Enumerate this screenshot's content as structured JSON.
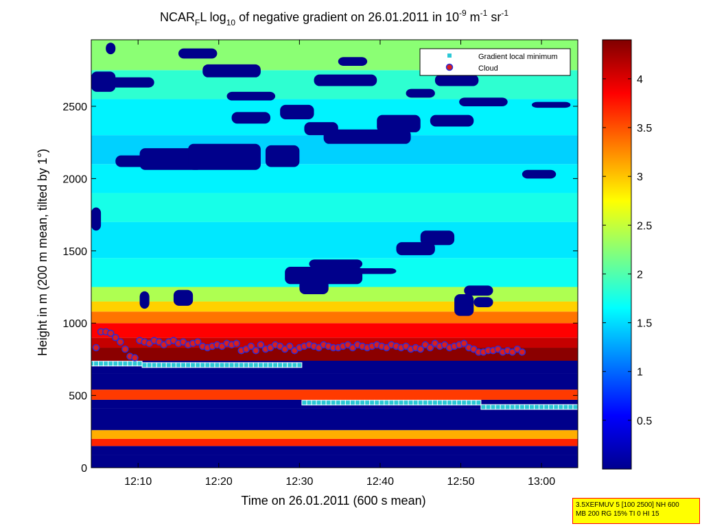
{
  "chart_data": {
    "type": "heatmap",
    "title": {
      "prefix": "NCAR",
      "sub1": "F",
      "mid1": "L log",
      "sub2": "10",
      "mid2": " of negative gradient on 26.01.2011 in 10",
      "sup1": "-9",
      "mid3": " m",
      "sup2": "-1",
      "mid4": " sr",
      "sup3": "-1"
    },
    "xlabel": "Time on 26.01.2011 (600 s mean)",
    "ylabel": "Height in m (200 m mean, tilted by 1°)",
    "xlim": [
      12.07,
      13.075
    ],
    "ylim": [
      0,
      2960
    ],
    "x_ticks": [
      {
        "value": 12.1667,
        "label": "12:10"
      },
      {
        "value": 12.3333,
        "label": "12:20"
      },
      {
        "value": 12.5,
        "label": "12:30"
      },
      {
        "value": 12.6667,
        "label": "12:40"
      },
      {
        "value": 12.8333,
        "label": "12:50"
      },
      {
        "value": 13.0,
        "label": "13:00"
      }
    ],
    "y_ticks": [
      {
        "value": 0,
        "label": "0"
      },
      {
        "value": 500,
        "label": "500"
      },
      {
        "value": 1000,
        "label": "1000"
      },
      {
        "value": 1500,
        "label": "1500"
      },
      {
        "value": 2000,
        "label": "2000"
      },
      {
        "value": 2500,
        "label": "2500"
      }
    ],
    "colorbar": {
      "range": [
        0,
        4.4
      ],
      "colormap": "jet",
      "ticks": [
        {
          "value": 0.5,
          "label": "0.5"
        },
        {
          "value": 1,
          "label": "1"
        },
        {
          "value": 1.5,
          "label": "1.5"
        },
        {
          "value": 2,
          "label": "2"
        },
        {
          "value": 2.5,
          "label": "2.5"
        },
        {
          "value": 3,
          "label": "3"
        },
        {
          "value": 3.5,
          "label": "3.5"
        },
        {
          "value": 4,
          "label": "4"
        }
      ]
    },
    "heatmap_bands": [
      {
        "ymin": 0,
        "ymax": 90,
        "value": 0.05
      },
      {
        "ymin": 90,
        "ymax": 150,
        "value": 0.05
      },
      {
        "ymin": 150,
        "ymax": 200,
        "value": 3.7
      },
      {
        "ymin": 200,
        "ymax": 260,
        "value": 3.1
      },
      {
        "ymin": 260,
        "ymax": 410,
        "value": 0.05
      },
      {
        "ymin": 410,
        "ymax": 470,
        "value": 0.05
      },
      {
        "ymin": 470,
        "ymax": 540,
        "value": 3.6
      },
      {
        "ymin": 540,
        "ymax": 650,
        "value": 0.05
      },
      {
        "ymin": 650,
        "ymax": 740,
        "value": 0.05
      },
      {
        "ymin": 740,
        "ymax": 830,
        "value": 4.35
      },
      {
        "ymin": 830,
        "ymax": 900,
        "value": 4.1
      },
      {
        "ymin": 900,
        "ymax": 1000,
        "value": 3.85
      },
      {
        "ymin": 1000,
        "ymax": 1080,
        "value": 3.35
      },
      {
        "ymin": 1080,
        "ymax": 1150,
        "value": 2.95
      },
      {
        "ymin": 1150,
        "ymax": 1250,
        "value": 2.4
      },
      {
        "ymin": 1250,
        "ymax": 1450,
        "value": 1.7
      },
      {
        "ymin": 1450,
        "ymax": 1700,
        "value": 1.55
      },
      {
        "ymin": 1700,
        "ymax": 1900,
        "value": 1.75
      },
      {
        "ymin": 1900,
        "ymax": 2100,
        "value": 1.6
      },
      {
        "ymin": 2100,
        "ymax": 2300,
        "value": 1.45
      },
      {
        "ymin": 2300,
        "ymax": 2550,
        "value": 1.6
      },
      {
        "ymin": 2550,
        "ymax": 2750,
        "value": 1.85
      },
      {
        "ymin": 2750,
        "ymax": 2960,
        "value": 2.25
      }
    ],
    "low_value_patches": [
      {
        "t0": 12.07,
        "t1": 12.12,
        "h0": 2600,
        "h1": 2740
      },
      {
        "t0": 12.11,
        "t1": 12.2,
        "h0": 2630,
        "h1": 2700
      },
      {
        "t0": 12.12,
        "t1": 12.22,
        "h0": 2080,
        "h1": 2160
      },
      {
        "t0": 12.17,
        "t1": 12.3,
        "h0": 2060,
        "h1": 2210
      },
      {
        "t0": 12.27,
        "t1": 12.42,
        "h0": 2060,
        "h1": 2240
      },
      {
        "t0": 12.43,
        "t1": 12.5,
        "h0": 2080,
        "h1": 2230
      },
      {
        "t0": 12.3,
        "t1": 12.42,
        "h0": 2700,
        "h1": 2790
      },
      {
        "t0": 12.35,
        "t1": 12.45,
        "h0": 2540,
        "h1": 2600
      },
      {
        "t0": 12.36,
        "t1": 12.44,
        "h0": 2380,
        "h1": 2460
      },
      {
        "t0": 12.46,
        "t1": 12.53,
        "h0": 2410,
        "h1": 2510
      },
      {
        "t0": 12.51,
        "t1": 12.58,
        "h0": 2300,
        "h1": 2390
      },
      {
        "t0": 12.53,
        "t1": 12.66,
        "h0": 2640,
        "h1": 2720
      },
      {
        "t0": 12.55,
        "t1": 12.73,
        "h0": 2240,
        "h1": 2340
      },
      {
        "t0": 12.66,
        "t1": 12.75,
        "h0": 2320,
        "h1": 2440
      },
      {
        "t0": 12.72,
        "t1": 12.78,
        "h0": 2560,
        "h1": 2620
      },
      {
        "t0": 12.78,
        "t1": 12.87,
        "h0": 2640,
        "h1": 2720
      },
      {
        "t0": 12.77,
        "t1": 12.86,
        "h0": 2360,
        "h1": 2440
      },
      {
        "t0": 12.83,
        "t1": 12.93,
        "h0": 2500,
        "h1": 2560
      },
      {
        "t0": 12.96,
        "t1": 13.03,
        "h0": 2000,
        "h1": 2060
      },
      {
        "t0": 12.98,
        "t1": 13.06,
        "h0": 2490,
        "h1": 2530
      },
      {
        "t0": 12.52,
        "t1": 12.63,
        "h0": 1380,
        "h1": 1440
      },
      {
        "t0": 12.47,
        "t1": 12.63,
        "h0": 1270,
        "h1": 1390
      },
      {
        "t0": 12.5,
        "t1": 12.56,
        "h0": 1200,
        "h1": 1300
      },
      {
        "t0": 12.6,
        "t1": 12.7,
        "h0": 1340,
        "h1": 1380
      },
      {
        "t0": 12.75,
        "t1": 12.82,
        "h0": 1540,
        "h1": 1640
      },
      {
        "t0": 12.7,
        "t1": 12.78,
        "h0": 1470,
        "h1": 1560
      },
      {
        "t0": 12.07,
        "t1": 12.09,
        "h0": 1640,
        "h1": 1800
      },
      {
        "t0": 12.1,
        "t1": 12.12,
        "h0": 2860,
        "h1": 2940
      },
      {
        "t0": 12.25,
        "t1": 12.33,
        "h0": 2830,
        "h1": 2900
      },
      {
        "t0": 12.58,
        "t1": 12.64,
        "h0": 2780,
        "h1": 2840
      },
      {
        "t0": 12.84,
        "t1": 12.9,
        "h0": 1260,
        "h1": 1190
      },
      {
        "t0": 12.82,
        "t1": 12.86,
        "h0": 1050,
        "h1": 1200
      },
      {
        "t0": 12.86,
        "t1": 12.9,
        "h0": 1110,
        "h1": 1180
      },
      {
        "t0": 12.17,
        "t1": 12.19,
        "h0": 1100,
        "h1": 1220
      },
      {
        "t0": 12.24,
        "t1": 12.28,
        "h0": 1120,
        "h1": 1230
      }
    ],
    "legend_position": "top-right",
    "series": [
      {
        "name": "Gradient local minimum",
        "marker": "square",
        "marker_color": "#2bc8d6",
        "edge_color": "#ffffff",
        "x": [
          12.07,
          12.08,
          12.09,
          12.1,
          12.11,
          12.12,
          12.13,
          12.14,
          12.15,
          12.16,
          12.17,
          12.18,
          12.19,
          12.2,
          12.21,
          12.22,
          12.23,
          12.24,
          12.25,
          12.26,
          12.27,
          12.28,
          12.29,
          12.3,
          12.31,
          12.32,
          12.33,
          12.34,
          12.35,
          12.36,
          12.37,
          12.38,
          12.39,
          12.4,
          12.41,
          12.42,
          12.43,
          12.44,
          12.45,
          12.46,
          12.47,
          12.48,
          12.49,
          12.5,
          12.51,
          12.52,
          12.53,
          12.54,
          12.55,
          12.56,
          12.57,
          12.58,
          12.59,
          12.6,
          12.61,
          12.62,
          12.63,
          12.64,
          12.65,
          12.66,
          12.67,
          12.68,
          12.69,
          12.7,
          12.71,
          12.72,
          12.73,
          12.74,
          12.75,
          12.76,
          12.77,
          12.78,
          12.79,
          12.8,
          12.81,
          12.82,
          12.83,
          12.84,
          12.85,
          12.86,
          12.87,
          12.88,
          12.89,
          12.9,
          12.91,
          12.92,
          12.93,
          12.94,
          12.95,
          12.96,
          12.97,
          12.98,
          12.99,
          13.0,
          13.01,
          13.02,
          13.03,
          13.04,
          13.05,
          13.06,
          13.07
        ],
        "y": [
          720,
          720,
          720,
          720,
          720,
          720,
          720,
          720,
          720,
          720,
          720,
          710,
          710,
          710,
          710,
          710,
          710,
          710,
          710,
          710,
          710,
          710,
          710,
          710,
          710,
          710,
          710,
          710,
          710,
          710,
          710,
          710,
          710,
          710,
          710,
          710,
          710,
          710,
          710,
          710,
          710,
          710,
          710,
          710,
          450,
          450,
          450,
          450,
          450,
          450,
          450,
          450,
          450,
          450,
          450,
          450,
          450,
          450,
          450,
          450,
          450,
          450,
          450,
          450,
          450,
          450,
          450,
          450,
          450,
          450,
          450,
          450,
          450,
          450,
          450,
          450,
          450,
          450,
          450,
          450,
          450,
          420,
          420,
          420,
          420,
          420,
          420,
          420,
          420,
          420,
          420,
          420,
          420,
          420,
          420,
          420,
          420,
          420,
          420,
          420,
          420
        ]
      },
      {
        "name": "Cloud",
        "marker": "circle",
        "marker_color": "#d81e1e",
        "edge_color": "#2b2bd6",
        "x": [
          12.08,
          12.09,
          12.1,
          12.11,
          12.12,
          12.13,
          12.14,
          12.15,
          12.16,
          12.17,
          12.18,
          12.19,
          12.2,
          12.21,
          12.22,
          12.23,
          12.24,
          12.25,
          12.26,
          12.27,
          12.28,
          12.29,
          12.3,
          12.31,
          12.32,
          12.33,
          12.34,
          12.35,
          12.36,
          12.37,
          12.38,
          12.39,
          12.4,
          12.41,
          12.42,
          12.43,
          12.44,
          12.45,
          12.46,
          12.47,
          12.48,
          12.49,
          12.5,
          12.51,
          12.52,
          12.53,
          12.54,
          12.55,
          12.56,
          12.57,
          12.58,
          12.59,
          12.6,
          12.61,
          12.62,
          12.63,
          12.64,
          12.65,
          12.66,
          12.67,
          12.68,
          12.69,
          12.7,
          12.71,
          12.72,
          12.73,
          12.74,
          12.75,
          12.76,
          12.77,
          12.78,
          12.79,
          12.8,
          12.81,
          12.82,
          12.83,
          12.84,
          12.85,
          12.86,
          12.87,
          12.88,
          12.89,
          12.9,
          12.91,
          12.92,
          12.93,
          12.94,
          12.95,
          12.96
        ],
        "y": [
          830,
          940,
          940,
          930,
          900,
          870,
          820,
          770,
          760,
          880,
          870,
          860,
          880,
          870,
          850,
          870,
          880,
          860,
          870,
          850,
          860,
          870,
          840,
          830,
          840,
          850,
          840,
          860,
          850,
          860,
          810,
          820,
          840,
          810,
          850,
          820,
          830,
          850,
          840,
          820,
          840,
          810,
          830,
          840,
          850,
          840,
          830,
          850,
          840,
          830,
          830,
          840,
          850,
          830,
          850,
          840,
          830,
          840,
          850,
          840,
          830,
          850,
          840,
          830,
          840,
          820,
          830,
          820,
          850,
          830,
          860,
          840,
          850,
          830,
          840,
          850,
          860,
          830,
          820,
          800,
          800,
          810,
          810,
          820,
          800,
          810,
          800,
          820,
          800
        ]
      }
    ]
  },
  "info_box": {
    "line1": "3.5XEFMUV 5 [100 2500] NH 600",
    "line2": "MB 200 RG 15% TI 0 HI 15"
  }
}
